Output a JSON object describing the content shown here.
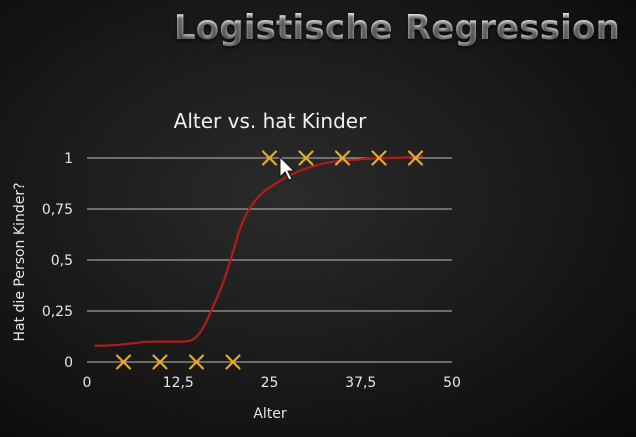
{
  "slide": {
    "title": "Logistische Regression"
  },
  "colors": {
    "grid": "#bdbdbd",
    "curve": "#b01c1c",
    "marker": "#e8a92b",
    "text": "#e6e6e6"
  },
  "chart_data": {
    "type": "scatter",
    "title": "Alter vs. hat Kinder",
    "xlabel": "Alter",
    "ylabel": "Hat die Person Kinder?",
    "xlim": [
      0,
      50
    ],
    "ylim": [
      0,
      1
    ],
    "x_ticks": [
      {
        "value": 0,
        "label": "0"
      },
      {
        "value": 12.5,
        "label": "12,5"
      },
      {
        "value": 25,
        "label": "25"
      },
      {
        "value": 37.5,
        "label": "37,5"
      },
      {
        "value": 50,
        "label": "50"
      }
    ],
    "y_ticks": [
      {
        "value": 0,
        "label": "0"
      },
      {
        "value": 0.25,
        "label": "0,25"
      },
      {
        "value": 0.5,
        "label": "0,5"
      },
      {
        "value": 0.75,
        "label": "0,75"
      },
      {
        "value": 1,
        "label": "1"
      }
    ],
    "grid": true,
    "series": [
      {
        "type": "scatter",
        "marker": "x",
        "points": [
          {
            "x": 5,
            "y": 0
          },
          {
            "x": 10,
            "y": 0
          },
          {
            "x": 15,
            "y": 0
          },
          {
            "x": 20,
            "y": 0
          },
          {
            "x": 25,
            "y": 1
          },
          {
            "x": 30,
            "y": 1
          },
          {
            "x": 35,
            "y": 1
          },
          {
            "x": 40,
            "y": 1
          },
          {
            "x": 45,
            "y": 1
          }
        ]
      },
      {
        "type": "line",
        "points": [
          {
            "x": 1,
            "y": 0.08
          },
          {
            "x": 3,
            "y": 0.08
          },
          {
            "x": 6,
            "y": 0.09
          },
          {
            "x": 8,
            "y": 0.1
          },
          {
            "x": 10,
            "y": 0.1
          },
          {
            "x": 12,
            "y": 0.1
          },
          {
            "x": 14,
            "y": 0.1
          },
          {
            "x": 15,
            "y": 0.12
          },
          {
            "x": 16,
            "y": 0.17
          },
          {
            "x": 17,
            "y": 0.25
          },
          {
            "x": 18,
            "y": 0.33
          },
          {
            "x": 19,
            "y": 0.42
          },
          {
            "x": 20,
            "y": 0.54
          },
          {
            "x": 20.5,
            "y": 0.6
          },
          {
            "x": 21,
            "y": 0.66
          },
          {
            "x": 22,
            "y": 0.74
          },
          {
            "x": 23,
            "y": 0.79
          },
          {
            "x": 24,
            "y": 0.83
          },
          {
            "x": 26,
            "y": 0.88
          },
          {
            "x": 28,
            "y": 0.92
          },
          {
            "x": 30,
            "y": 0.95
          },
          {
            "x": 33,
            "y": 0.98
          },
          {
            "x": 36,
            "y": 0.99
          },
          {
            "x": 40,
            "y": 1.0
          },
          {
            "x": 43,
            "y": 1.0
          },
          {
            "x": 46,
            "y": 1.01
          }
        ]
      }
    ]
  }
}
